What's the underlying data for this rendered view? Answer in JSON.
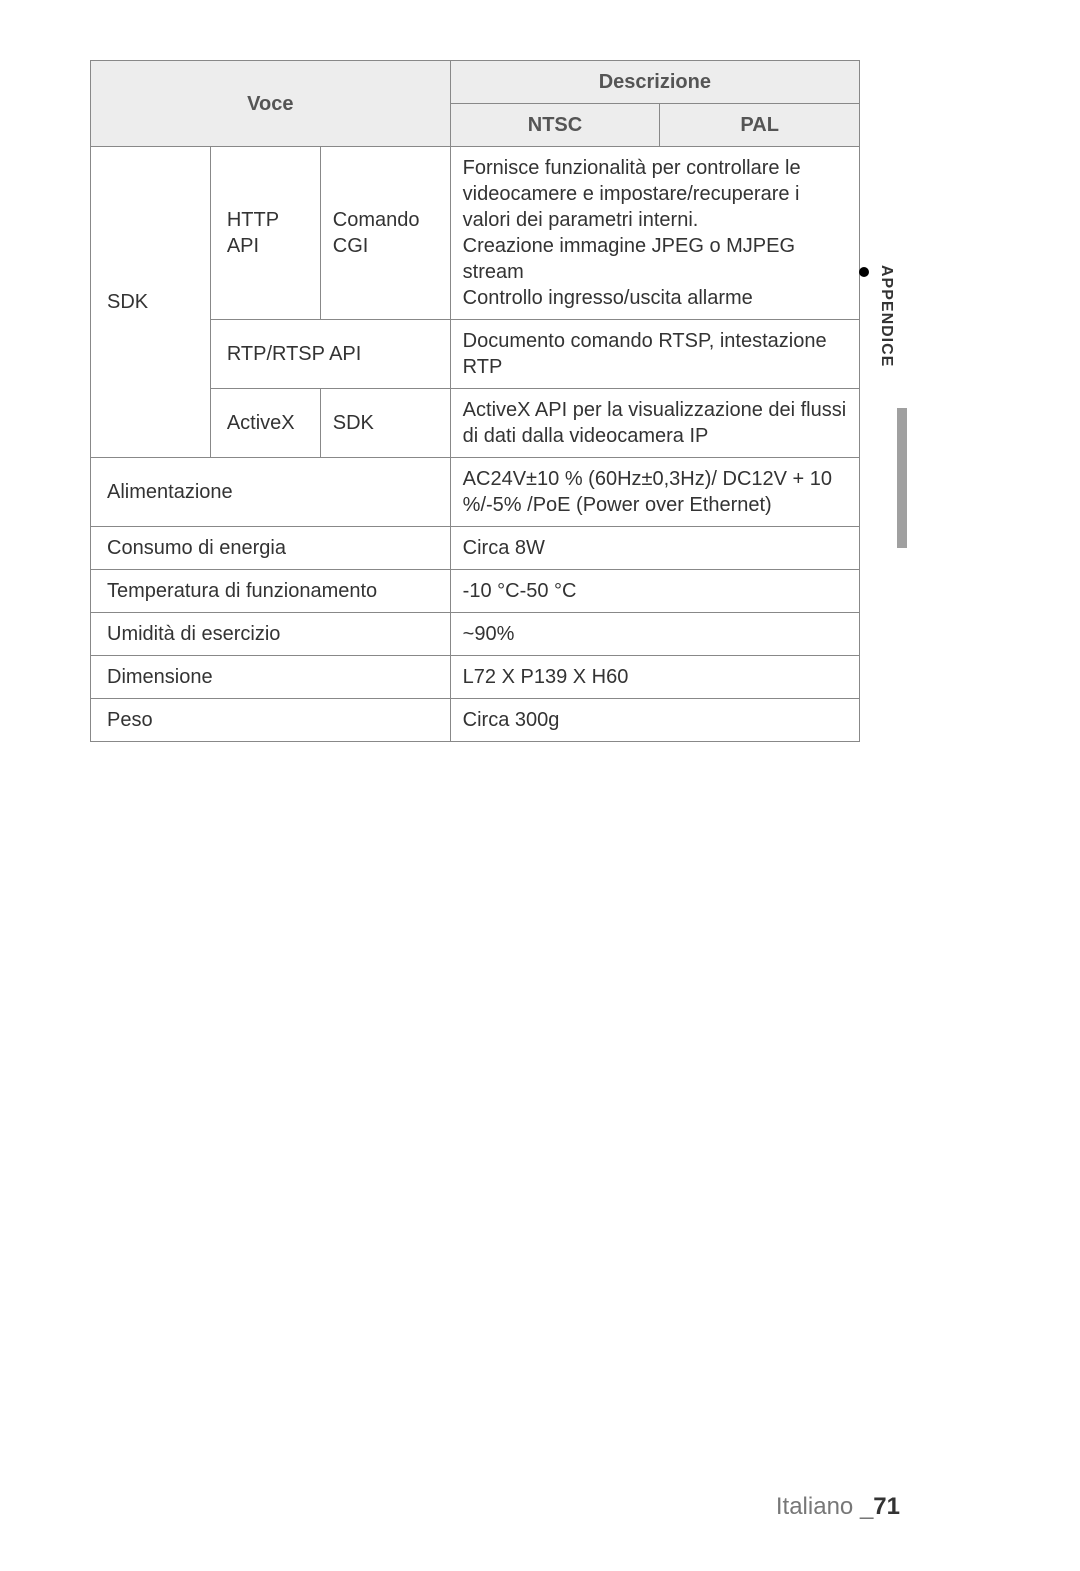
{
  "headers": {
    "voce": "Voce",
    "descrizione": "Descrizione",
    "ntsc": "NTSC",
    "pal": "PAL"
  },
  "sdk": {
    "label": "SDK",
    "http_api": {
      "label": "HTTP API",
      "method": "Comando CGI",
      "desc": "Fornisce funzionalità per controllare le videocamere e impostare/recuperare i valori dei parametri interni.\nCreazione immagine JPEG o MJPEG stream\nControllo ingresso/uscita allarme"
    },
    "rtp": {
      "label": "RTP/RTSP API",
      "desc": "Documento comando RTSP,  intestazione RTP"
    },
    "activex": {
      "label": "ActiveX",
      "method": "SDK",
      "desc": "ActiveX API per la visualizzazione dei flussi di dati dalla videocamera IP"
    }
  },
  "rows": {
    "alimentazione": {
      "label": "Alimentazione",
      "value": "AC24V±10 % (60Hz±0,3Hz)/ DC12V + 10 %/-5% /PoE (Power over Ethernet)"
    },
    "consumo": {
      "label": "Consumo di energia",
      "value": "Circa 8W"
    },
    "temperatura": {
      "label": "Temperatura di funzionamento",
      "value": "-10 °C-50 °C"
    },
    "umidita": {
      "label": "Umidità di esercizio",
      "value": "~90%"
    },
    "dimensione": {
      "label": "Dimensione",
      "value": "L72 X P139 X H60"
    },
    "peso": {
      "label": "Peso",
      "value": "Circa 300g"
    }
  },
  "sidebar": {
    "label": "APPENDICE"
  },
  "footer": {
    "language": "Italiano ",
    "separator": "_",
    "page": "71"
  },
  "colors": {
    "header_bg": "#ededed",
    "border": "#888888",
    "text": "#333333",
    "footer_text": "#777777",
    "side_bar": "#a0a0a0"
  }
}
